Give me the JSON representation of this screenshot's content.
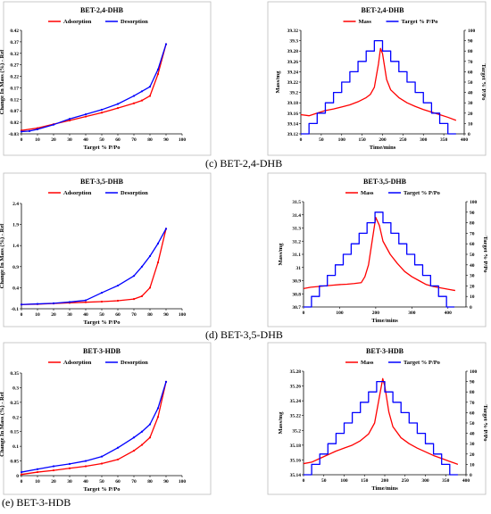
{
  "captions": [
    "(c) BET-2,4-DHB",
    "(d) BET-3,5-DHB",
    "(e) BET-3-HDB"
  ],
  "colors": {
    "adsorption": "#ff0000",
    "desorption": "#0000ff",
    "mass": "#ff0000",
    "target": "#0000ff"
  },
  "chart_data": [
    {
      "type": "line",
      "title": "BET-2,4-DHB",
      "xlabel": "Target % P/Po",
      "ylabel": "Change In Mass (%) - Ref",
      "xlim": [
        0,
        100
      ],
      "ylim": [
        -0.03,
        0.42
      ],
      "xticks": [
        "0",
        "10",
        "20",
        "30",
        "40",
        "50",
        "60",
        "70",
        "80",
        "90",
        "100"
      ],
      "yticks": [
        "-0.03",
        "0.02",
        "0.07",
        "0.12",
        "0.17",
        "0.22",
        "0.27",
        "0.32",
        "0.37",
        "0.42"
      ],
      "legend": "top-center",
      "series": [
        {
          "name": "Adsorption",
          "color": "#ff0000",
          "x": [
            0,
            10,
            20,
            30,
            40,
            50,
            60,
            70,
            75,
            80,
            85,
            90
          ],
          "y": [
            -0.015,
            -0.005,
            0.012,
            0.028,
            0.045,
            0.062,
            0.082,
            0.103,
            0.115,
            0.135,
            0.23,
            0.36
          ]
        },
        {
          "name": "Desorption",
          "color": "#0000ff",
          "x": [
            90,
            85,
            80,
            75,
            70,
            60,
            50,
            40,
            30,
            20,
            10,
            5,
            0
          ],
          "y": [
            0.36,
            0.25,
            0.175,
            0.155,
            0.135,
            0.1,
            0.075,
            0.055,
            0.035,
            0.01,
            -0.01,
            -0.018,
            -0.02
          ]
        }
      ]
    },
    {
      "type": "line",
      "title": "BET-2,4-DHB",
      "xlabel": "Time/mins",
      "ylabel": "Mass/mg",
      "y2label": "Target % P/Po",
      "xlim": [
        0,
        400
      ],
      "ylim": [
        39.12,
        39.32
      ],
      "y2lim": [
        0,
        100
      ],
      "xticks": [
        "0",
        "50",
        "100",
        "150",
        "200",
        "250",
        "300",
        "350",
        "400"
      ],
      "yticks": [
        "39.12",
        "39.14",
        "39.16",
        "39.18",
        "39.2",
        "39.22",
        "39.24",
        "39.26",
        "39.28",
        "39.3",
        "39.32"
      ],
      "y2ticks": [
        "0",
        "10",
        "20",
        "30",
        "40",
        "50",
        "60",
        "70",
        "80",
        "90",
        "100"
      ],
      "legend": "top-center",
      "series": [
        {
          "name": "Mass",
          "color": "#ff0000",
          "axis": "left",
          "x": [
            0,
            20,
            40,
            60,
            80,
            100,
            120,
            140,
            160,
            170,
            180,
            190,
            195,
            200,
            205,
            210,
            220,
            240,
            260,
            280,
            300,
            320,
            340,
            360,
            380
          ],
          "y": [
            39.157,
            39.155,
            39.16,
            39.165,
            39.168,
            39.172,
            39.176,
            39.182,
            39.19,
            39.196,
            39.21,
            39.255,
            39.285,
            39.275,
            39.25,
            39.225,
            39.205,
            39.19,
            39.18,
            39.173,
            39.167,
            39.162,
            39.157,
            39.152,
            39.146
          ]
        },
        {
          "name": "Target % P/Po",
          "color": "#0000ff",
          "axis": "right",
          "step": true,
          "x": [
            0,
            20,
            20,
            40,
            40,
            60,
            60,
            80,
            80,
            100,
            100,
            120,
            120,
            140,
            140,
            160,
            160,
            180,
            180,
            200,
            200,
            220,
            220,
            240,
            240,
            260,
            260,
            280,
            280,
            300,
            300,
            320,
            320,
            340,
            340,
            360,
            360,
            380
          ],
          "y": [
            0,
            0,
            10,
            10,
            20,
            20,
            30,
            30,
            40,
            40,
            50,
            50,
            60,
            60,
            70,
            70,
            80,
            80,
            90,
            90,
            80,
            80,
            70,
            70,
            60,
            60,
            50,
            50,
            40,
            40,
            30,
            30,
            20,
            20,
            10,
            10,
            0,
            0
          ]
        }
      ]
    },
    {
      "type": "line",
      "title": "BET-3,5-DHB",
      "xlabel": "Target % P/Po",
      "ylabel": "Change In Mass (%) - Ref",
      "xlim": [
        0,
        100
      ],
      "ylim": [
        -0.1,
        2.4
      ],
      "xticks": [
        "0",
        "10",
        "20",
        "30",
        "40",
        "50",
        "60",
        "70",
        "80",
        "90",
        "100"
      ],
      "yticks": [
        "-0.1",
        "0.4",
        "0.9",
        "1.4",
        "1.9",
        "2.4"
      ],
      "legend": "top-center",
      "series": [
        {
          "name": "Adsorption",
          "color": "#ff0000",
          "x": [
            0,
            10,
            20,
            30,
            40,
            50,
            60,
            70,
            75,
            80,
            85,
            90
          ],
          "y": [
            0.0,
            0.01,
            0.025,
            0.04,
            0.055,
            0.07,
            0.09,
            0.13,
            0.2,
            0.4,
            1.0,
            1.8
          ]
        },
        {
          "name": "Desorption",
          "color": "#0000ff",
          "x": [
            90,
            85,
            80,
            75,
            70,
            60,
            50,
            40,
            30,
            20,
            10,
            0
          ],
          "y": [
            1.8,
            1.45,
            1.15,
            0.9,
            0.68,
            0.45,
            0.28,
            0.1,
            0.06,
            0.03,
            0.015,
            0.0
          ]
        }
      ]
    },
    {
      "type": "line",
      "title": "BET-3,5-DHB",
      "xlabel": "Time/mins",
      "ylabel": "Mass/mg",
      "y2label": "Target % P/Po",
      "xlim": [
        0,
        450
      ],
      "ylim": [
        30.7,
        31.5
      ],
      "y2lim": [
        0,
        100
      ],
      "xticks": [
        "0",
        "100",
        "200",
        "300",
        "400"
      ],
      "yticks": [
        "30.7",
        "30.8",
        "30.9",
        "31",
        "31.1",
        "31.2",
        "31.3",
        "31.4",
        "31.5"
      ],
      "y2ticks": [
        "0",
        "10",
        "20",
        "30",
        "40",
        "50",
        "60",
        "70",
        "80",
        "90",
        "100"
      ],
      "legend": "top-center",
      "series": [
        {
          "name": "Mass",
          "color": "#ff0000",
          "axis": "left",
          "x": [
            0,
            20,
            40,
            60,
            80,
            100,
            120,
            140,
            160,
            170,
            180,
            190,
            200,
            210,
            220,
            240,
            260,
            280,
            300,
            320,
            340,
            360,
            380,
            400,
            420
          ],
          "y": [
            30.84,
            30.85,
            30.855,
            30.86,
            30.865,
            30.87,
            30.873,
            30.878,
            30.885,
            30.93,
            31.02,
            31.2,
            31.38,
            31.32,
            31.2,
            31.1,
            31.03,
            30.97,
            30.93,
            30.9,
            30.87,
            30.855,
            30.845,
            30.835,
            30.825
          ]
        },
        {
          "name": "Target % P/Po",
          "color": "#0000ff",
          "axis": "right",
          "step": true,
          "x": [
            0,
            22,
            22,
            44,
            44,
            66,
            66,
            88,
            88,
            110,
            110,
            132,
            132,
            154,
            154,
            176,
            176,
            198,
            198,
            220,
            220,
            242,
            242,
            264,
            264,
            286,
            286,
            308,
            308,
            330,
            330,
            352,
            352,
            374,
            374,
            396,
            396,
            418
          ],
          "y": [
            0,
            0,
            10,
            10,
            20,
            20,
            30,
            30,
            40,
            40,
            50,
            50,
            60,
            60,
            70,
            70,
            80,
            80,
            90,
            90,
            80,
            80,
            70,
            70,
            60,
            60,
            50,
            50,
            40,
            40,
            30,
            30,
            20,
            20,
            10,
            10,
            0,
            0
          ]
        }
      ]
    },
    {
      "type": "line",
      "title": "BET-3-HDB",
      "xlabel": "Target % P/Po",
      "ylabel": "Change In Mass (%) - Ref",
      "xlim": [
        0,
        100
      ],
      "ylim": [
        0,
        0.35
      ],
      "xticks": [
        "0",
        "10",
        "20",
        "30",
        "40",
        "50",
        "60",
        "70",
        "80",
        "90",
        "100"
      ],
      "yticks": [
        "0",
        "0.05",
        "0.1",
        "0.15",
        "0.2",
        "0.25",
        "0.3",
        "0.35"
      ],
      "legend": "top-center",
      "series": [
        {
          "name": "Adsorption",
          "color": "#ff0000",
          "x": [
            0,
            10,
            20,
            30,
            40,
            50,
            60,
            70,
            75,
            80,
            85,
            90
          ],
          "y": [
            0.004,
            0.012,
            0.018,
            0.025,
            0.032,
            0.041,
            0.055,
            0.085,
            0.105,
            0.13,
            0.2,
            0.32
          ]
        },
        {
          "name": "Desorption",
          "color": "#0000ff",
          "x": [
            90,
            85,
            80,
            75,
            70,
            60,
            50,
            40,
            30,
            20,
            10,
            0
          ],
          "y": [
            0.32,
            0.23,
            0.175,
            0.15,
            0.13,
            0.095,
            0.065,
            0.05,
            0.04,
            0.032,
            0.022,
            0.012
          ]
        }
      ]
    },
    {
      "type": "line",
      "title": "BET-3-HDB",
      "xlabel": "Time/mins",
      "ylabel": "Mass/mg",
      "y2label": "Target % P/Po",
      "xlim": [
        0,
        400
      ],
      "ylim": [
        35.14,
        35.28
      ],
      "y2lim": [
        0,
        100
      ],
      "xticks": [
        "0",
        "50",
        "100",
        "150",
        "200",
        "250",
        "300",
        "350",
        "400"
      ],
      "yticks": [
        "35.14",
        "35.16",
        "35.18",
        "35.2",
        "35.22",
        "35.24",
        "35.26",
        "35.28"
      ],
      "y2ticks": [
        "0",
        "10",
        "20",
        "30",
        "40",
        "50",
        "60",
        "70",
        "80",
        "90",
        "100"
      ],
      "legend": "top-center",
      "series": [
        {
          "name": "Mass",
          "color": "#ff0000",
          "axis": "left",
          "x": [
            0,
            20,
            40,
            60,
            80,
            100,
            120,
            140,
            160,
            175,
            185,
            195,
            200,
            210,
            220,
            240,
            260,
            280,
            300,
            320,
            340,
            360,
            380
          ],
          "y": [
            35.155,
            35.157,
            35.162,
            35.167,
            35.172,
            35.176,
            35.18,
            35.186,
            35.195,
            35.21,
            35.24,
            35.27,
            35.26,
            35.225,
            35.205,
            35.19,
            35.182,
            35.176,
            35.171,
            35.166,
            35.162,
            35.158,
            35.154
          ]
        },
        {
          "name": "Target % P/Po",
          "color": "#0000ff",
          "axis": "right",
          "step": true,
          "x": [
            0,
            20,
            20,
            40,
            40,
            60,
            60,
            80,
            80,
            100,
            100,
            120,
            120,
            140,
            140,
            160,
            160,
            180,
            180,
            200,
            200,
            220,
            220,
            240,
            240,
            260,
            260,
            280,
            280,
            300,
            300,
            320,
            320,
            340,
            340,
            360,
            360,
            380
          ],
          "y": [
            0,
            0,
            10,
            10,
            20,
            20,
            30,
            30,
            40,
            40,
            50,
            50,
            60,
            60,
            70,
            70,
            80,
            80,
            90,
            90,
            80,
            80,
            70,
            70,
            60,
            60,
            50,
            50,
            40,
            40,
            30,
            30,
            20,
            20,
            10,
            10,
            0,
            0
          ]
        }
      ]
    }
  ]
}
